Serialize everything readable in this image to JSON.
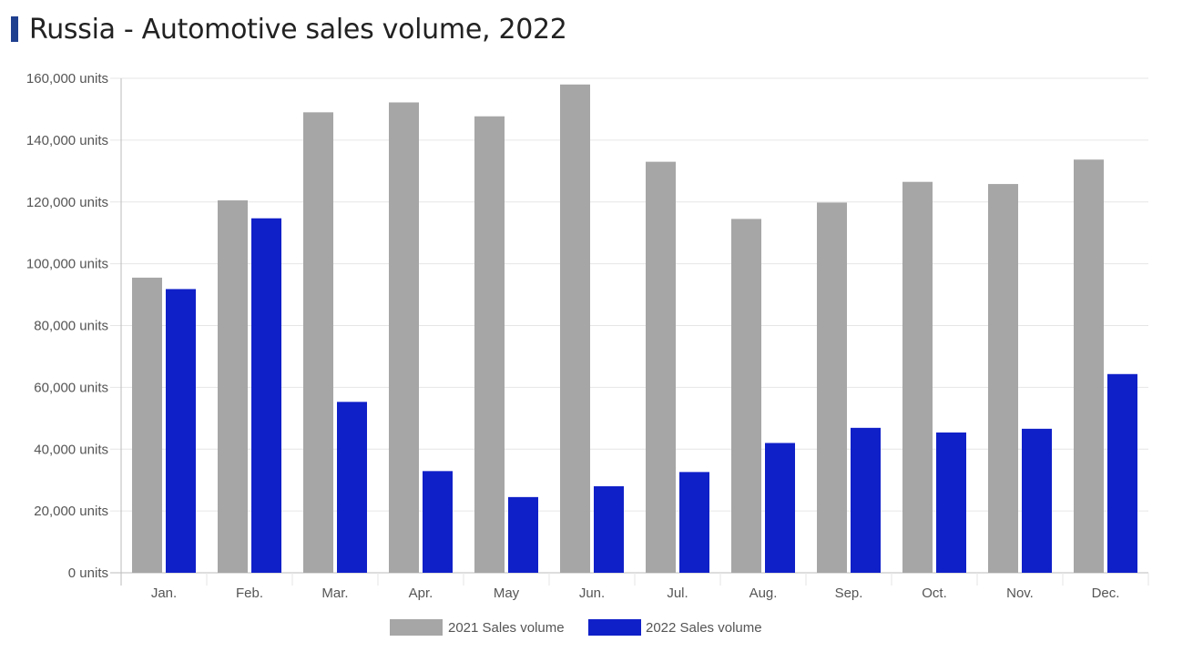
{
  "title": "Russia - Automotive sales volume, 2022",
  "colors": {
    "accent": "#1f3f8f",
    "series_2021": "#a6a6a6",
    "series_2022": "#1020c8",
    "grid": "#e6e6e6",
    "axis": "#bbbbbb"
  },
  "chart_data": {
    "type": "bar",
    "title": "Russia - Automotive sales volume, 2022",
    "xlabel": "",
    "ylabel": "",
    "categories": [
      "Jan.",
      "Feb.",
      "Mar.",
      "Apr.",
      "May",
      "Jun.",
      "Jul.",
      "Aug.",
      "Sep.",
      "Oct.",
      "Nov.",
      "Dec."
    ],
    "series": [
      {
        "name": "2021 Sales volume",
        "values": [
          95500,
          120500,
          149000,
          152200,
          147700,
          158000,
          133000,
          114500,
          119800,
          126500,
          125800,
          133700
        ]
      },
      {
        "name": "2022 Sales volume",
        "values": [
          91800,
          114700,
          55300,
          32900,
          24500,
          28000,
          32600,
          42000,
          46900,
          45400,
          46600,
          64300
        ]
      }
    ],
    "ylim": [
      0,
      160000
    ],
    "yticks": [
      0,
      20000,
      40000,
      60000,
      80000,
      100000,
      120000,
      140000,
      160000
    ],
    "ytick_labels": [
      "0 units",
      "20,000 units",
      "40,000 units",
      "60,000 units",
      "80,000 units",
      "100,000 units",
      "120,000 units",
      "140,000 units",
      "160,000 units"
    ],
    "grid": true,
    "legend_position": "bottom"
  }
}
